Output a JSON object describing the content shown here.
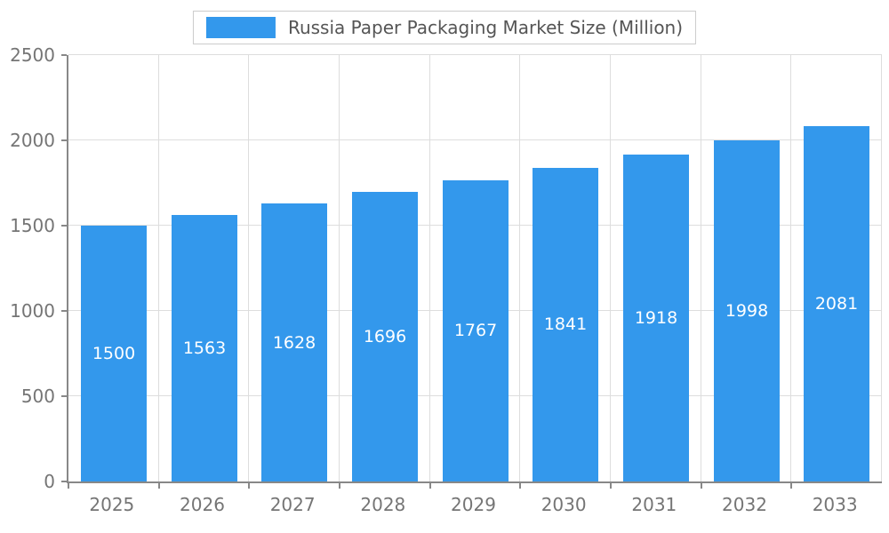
{
  "chart_data": {
    "type": "bar",
    "title": "Russia Paper Packaging Market Size (Million)",
    "categories": [
      "2025",
      "2026",
      "2027",
      "2028",
      "2029",
      "2030",
      "2031",
      "2032",
      "2033"
    ],
    "values": [
      1500,
      1563,
      1628,
      1696,
      1767,
      1841,
      1918,
      1998,
      2081
    ],
    "xlabel": "",
    "ylabel": "",
    "ylim": [
      0,
      2500
    ],
    "yticks": [
      0,
      500,
      1000,
      1500,
      2000,
      2500
    ],
    "grid": true,
    "legend_position": "top",
    "bar_color": "#3398EC",
    "value_label_color": "#ffffff",
    "axis_text_color": "#757575",
    "title_color": "#555555",
    "gridline_color": "#dddddd"
  }
}
